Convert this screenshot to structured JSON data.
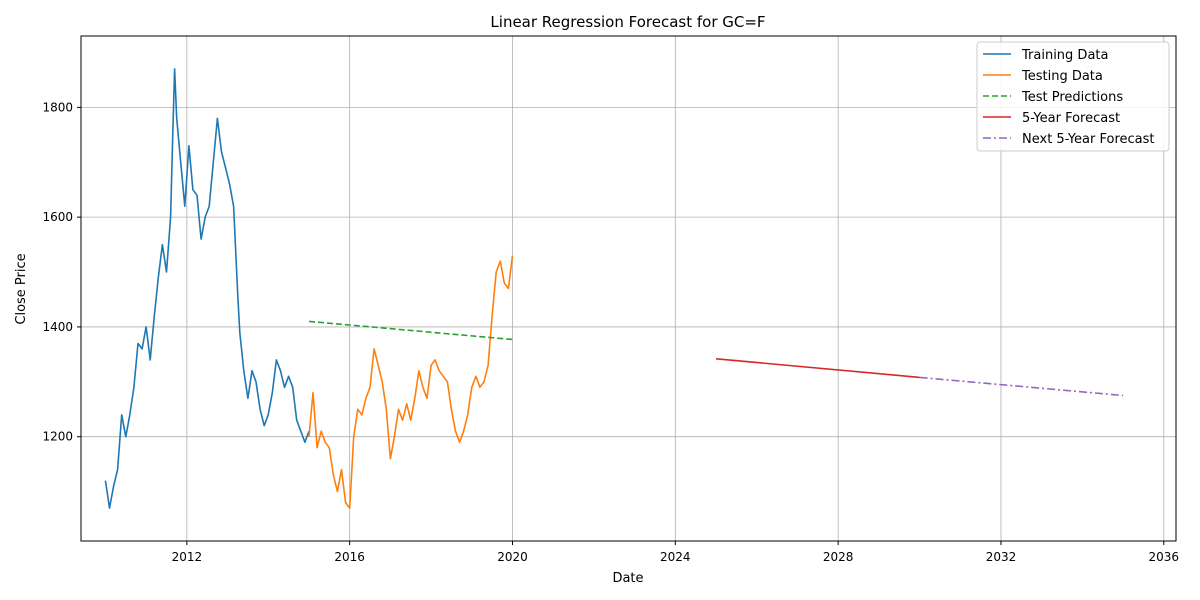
{
  "chart_data": {
    "type": "line",
    "title": "Linear Regression Forecast for GC=F",
    "xlabel": "Date",
    "ylabel": "Close Price",
    "xlim": [
      2009.4,
      2036.3
    ],
    "ylim": [
      1010,
      1930
    ],
    "x_ticks": [
      "2012",
      "2016",
      "2020",
      "2024",
      "2028",
      "2032",
      "2036"
    ],
    "y_ticks": [
      "1200",
      "1400",
      "1600",
      "1800"
    ],
    "grid": true,
    "legend_position": "top-right",
    "colors": {
      "training": "#1f77b4",
      "testing": "#ff7f0e",
      "test_pred": "#2ca02c",
      "forecast5": "#d62728",
      "forecast_next": "#9467bd"
    },
    "series": [
      {
        "name": "Training Data",
        "style": "solid",
        "x": [
          2010.0,
          2010.05,
          2010.1,
          2010.2,
          2010.3,
          2010.4,
          2010.5,
          2010.6,
          2010.7,
          2010.8,
          2010.9,
          2011.0,
          2011.1,
          2011.2,
          2011.3,
          2011.4,
          2011.5,
          2011.6,
          2011.65,
          2011.7,
          2011.75,
          2011.85,
          2011.95,
          2012.05,
          2012.15,
          2012.25,
          2012.35,
          2012.45,
          2012.55,
          2012.65,
          2012.75,
          2012.85,
          2012.95,
          2013.05,
          2013.15,
          2013.25,
          2013.3,
          2013.4,
          2013.5,
          2013.6,
          2013.7,
          2013.8,
          2013.9,
          2014.0,
          2014.1,
          2014.2,
          2014.3,
          2014.4,
          2014.5,
          2014.6,
          2014.7,
          2014.8,
          2014.9,
          2015.0
        ],
        "y": [
          1120,
          1095,
          1070,
          1110,
          1140,
          1240,
          1200,
          1240,
          1290,
          1370,
          1360,
          1400,
          1340,
          1420,
          1490,
          1550,
          1500,
          1600,
          1740,
          1870,
          1780,
          1700,
          1620,
          1730,
          1650,
          1640,
          1560,
          1600,
          1620,
          1700,
          1780,
          1720,
          1690,
          1660,
          1620,
          1460,
          1390,
          1320,
          1270,
          1320,
          1300,
          1250,
          1220,
          1240,
          1280,
          1340,
          1320,
          1290,
          1310,
          1290,
          1230,
          1210,
          1190,
          1210
        ]
      },
      {
        "name": "Testing Data",
        "style": "solid",
        "x": [
          2015.0,
          2015.1,
          2015.2,
          2015.3,
          2015.4,
          2015.5,
          2015.6,
          2015.7,
          2015.8,
          2015.9,
          2016.0,
          2016.1,
          2016.2,
          2016.3,
          2016.4,
          2016.5,
          2016.6,
          2016.7,
          2016.8,
          2016.9,
          2017.0,
          2017.1,
          2017.2,
          2017.3,
          2017.4,
          2017.5,
          2017.6,
          2017.7,
          2017.8,
          2017.9,
          2018.0,
          2018.1,
          2018.2,
          2018.3,
          2018.4,
          2018.5,
          2018.6,
          2018.7,
          2018.8,
          2018.9,
          2019.0,
          2019.1,
          2019.2,
          2019.3,
          2019.4,
          2019.5,
          2019.6,
          2019.7,
          2019.8,
          2019.9,
          2020.0
        ],
        "y": [
          1200,
          1280,
          1180,
          1210,
          1190,
          1180,
          1130,
          1100,
          1140,
          1080,
          1070,
          1200,
          1250,
          1240,
          1270,
          1290,
          1360,
          1330,
          1300,
          1250,
          1160,
          1200,
          1250,
          1230,
          1260,
          1230,
          1270,
          1320,
          1290,
          1270,
          1330,
          1340,
          1320,
          1310,
          1300,
          1250,
          1210,
          1190,
          1210,
          1240,
          1290,
          1310,
          1290,
          1300,
          1330,
          1420,
          1500,
          1520,
          1480,
          1470,
          1530
        ]
      },
      {
        "name": "Test Predictions",
        "style": "dashed",
        "x": [
          2015.0,
          2020.0
        ],
        "y": [
          1410,
          1377
        ]
      },
      {
        "name": "5-Year Forecast",
        "style": "solid",
        "x": [
          2025.0,
          2030.0
        ],
        "y": [
          1342,
          1308
        ]
      },
      {
        "name": "Next 5-Year Forecast",
        "style": "dashdot",
        "x": [
          2030.0,
          2035.0
        ],
        "y": [
          1308,
          1275
        ]
      }
    ]
  }
}
